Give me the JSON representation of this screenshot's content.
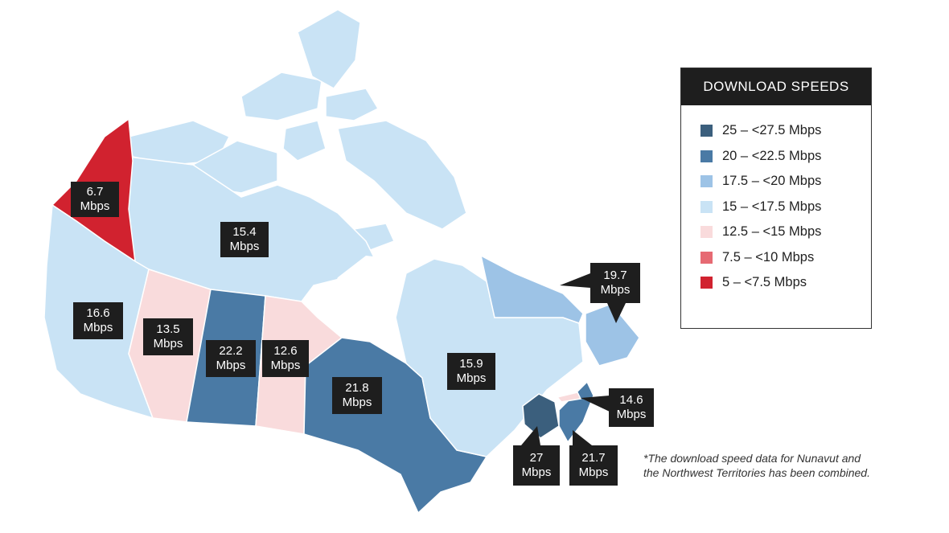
{
  "colors": {
    "c1": "#3b5f7d",
    "c2": "#4a7aa5",
    "c3": "#9dc3e6",
    "c4": "#c9e3f5",
    "c5": "#f9dbdc",
    "c6": "#e66a73",
    "c7": "#d1222f"
  },
  "legend": {
    "title": "DOWNLOAD SPEEDS",
    "items": [
      {
        "label": "25 – <27.5 Mbps",
        "color": "#3b5f7d"
      },
      {
        "label": "20 – <22.5 Mbps",
        "color": "#4a7aa5"
      },
      {
        "label": "17.5 – <20 Mbps",
        "color": "#9dc3e6"
      },
      {
        "label": "15 – <17.5 Mbps",
        "color": "#c9e3f5"
      },
      {
        "label": "12.5 – <15 Mbps",
        "color": "#f9dbdc"
      },
      {
        "label": "7.5 – <10 Mbps",
        "color": "#e66a73"
      },
      {
        "label": "5 – <7.5 Mbps",
        "color": "#d1222f"
      }
    ]
  },
  "regions": {
    "yukon": {
      "speed": "6.7",
      "unit": "Mbps"
    },
    "nwt_nunavut": {
      "speed": "15.4",
      "unit": "Mbps"
    },
    "british_columbia": {
      "speed": "16.6",
      "unit": "Mbps"
    },
    "alberta": {
      "speed": "13.5",
      "unit": "Mbps"
    },
    "saskatchewan": {
      "speed": "22.2",
      "unit": "Mbps"
    },
    "manitoba": {
      "speed": "12.6",
      "unit": "Mbps"
    },
    "ontario": {
      "speed": "21.8",
      "unit": "Mbps"
    },
    "quebec": {
      "speed": "15.9",
      "unit": "Mbps"
    },
    "newfoundland_labrador": {
      "speed": "19.7",
      "unit": "Mbps"
    },
    "prince_edward_island": {
      "speed": "14.6",
      "unit": "Mbps"
    },
    "new_brunswick": {
      "speed": "27",
      "unit": "Mbps"
    },
    "nova_scotia": {
      "speed": "21.7",
      "unit": "Mbps"
    }
  },
  "footnote": {
    "line1": "*The download speed data for Nunavut and",
    "line2": "the Northwest Territories has been combined."
  }
}
